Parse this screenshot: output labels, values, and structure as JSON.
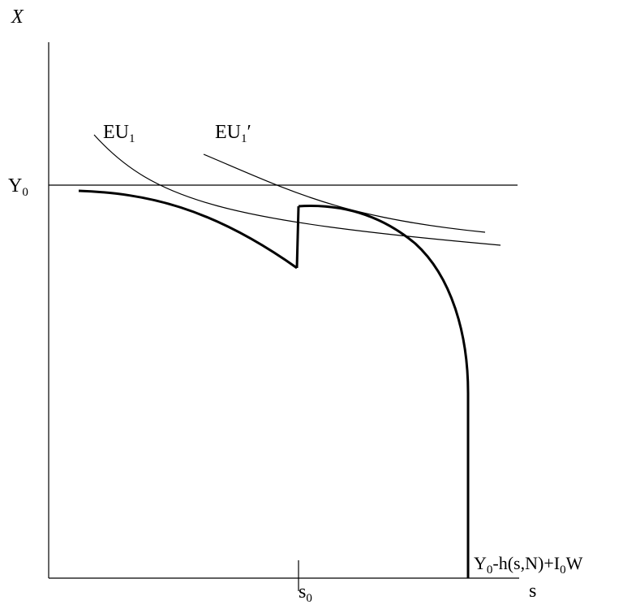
{
  "labels": {
    "y_axis": "X",
    "x_axis": "s",
    "y0": {
      "base": "Y",
      "sub": "0"
    },
    "s0": {
      "base": "s",
      "sub": "0"
    },
    "eu1": {
      "base": "EU",
      "sub": "1"
    },
    "eu1_prime": {
      "base": "EU",
      "sub": "1",
      "suffix": "′"
    },
    "budget": {
      "part1": "Y",
      "sub1": "0",
      "part2": "-h(s,N)+I",
      "sub2": "0",
      "part3": "W"
    }
  },
  "colors": {
    "ink": "#000000",
    "background": "#ffffff"
  }
}
